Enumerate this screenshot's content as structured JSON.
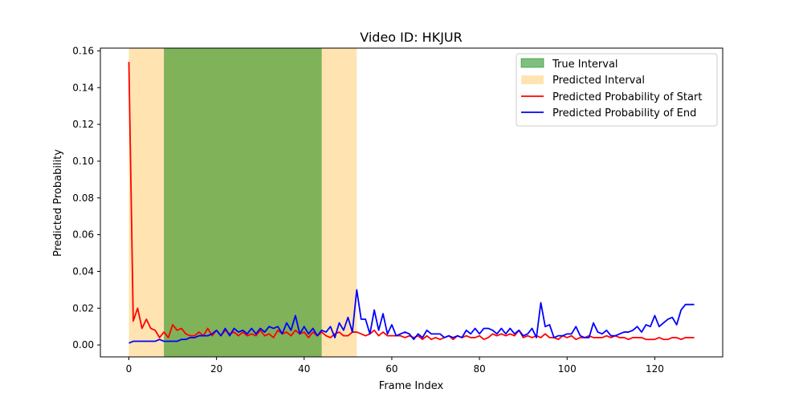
{
  "chart_data": {
    "type": "line",
    "title": "Video ID: HKJUR",
    "xlabel": "Frame Index",
    "ylabel": "Predicted Probability",
    "xlim": [
      -6.5,
      135.5
    ],
    "ylim": [
      -0.0065,
      0.1615
    ],
    "x_ticks": [
      0,
      20,
      40,
      60,
      80,
      100,
      120
    ],
    "y_ticks": [
      0.0,
      0.02,
      0.04,
      0.06,
      0.08,
      0.1,
      0.12,
      0.14,
      0.16
    ],
    "x_tick_labels": [
      "0",
      "20",
      "40",
      "60",
      "80",
      "100",
      "120"
    ],
    "y_tick_labels": [
      "0.00",
      "0.02",
      "0.04",
      "0.06",
      "0.08",
      "0.10",
      "0.12",
      "0.14",
      "0.16"
    ],
    "grid": false,
    "legend_position": "top-right",
    "intervals": [
      {
        "name": "Predicted Interval",
        "start": 0,
        "end": 52,
        "color": "#ffa500",
        "opacity": 0.3
      },
      {
        "name": "True Interval",
        "start": 8,
        "end": 44,
        "color": "#008000",
        "opacity": 0.5
      }
    ],
    "series": [
      {
        "name": "Predicted Probability of Start",
        "color": "#ff0000",
        "values": [
          0.154,
          0.013,
          0.02,
          0.009,
          0.014,
          0.009,
          0.008,
          0.004,
          0.007,
          0.004,
          0.011,
          0.008,
          0.009,
          0.006,
          0.005,
          0.005,
          0.007,
          0.005,
          0.009,
          0.005,
          0.008,
          0.005,
          0.008,
          0.006,
          0.007,
          0.005,
          0.007,
          0.005,
          0.006,
          0.005,
          0.008,
          0.005,
          0.006,
          0.004,
          0.008,
          0.006,
          0.007,
          0.005,
          0.008,
          0.006,
          0.007,
          0.004,
          0.007,
          0.005,
          0.007,
          0.005,
          0.004,
          0.006,
          0.007,
          0.005,
          0.005,
          0.007,
          0.007,
          0.006,
          0.005,
          0.006,
          0.008,
          0.005,
          0.007,
          0.005,
          0.005,
          0.005,
          0.005,
          0.004,
          0.005,
          0.004,
          0.005,
          0.003,
          0.005,
          0.003,
          0.004,
          0.003,
          0.004,
          0.005,
          0.003,
          0.005,
          0.004,
          0.005,
          0.004,
          0.004,
          0.005,
          0.003,
          0.004,
          0.006,
          0.005,
          0.006,
          0.005,
          0.006,
          0.005,
          0.008,
          0.004,
          0.005,
          0.004,
          0.005,
          0.004,
          0.006,
          0.004,
          0.004,
          0.003,
          0.005,
          0.004,
          0.005,
          0.003,
          0.004,
          0.004,
          0.005,
          0.004,
          0.004,
          0.004,
          0.005,
          0.004,
          0.005,
          0.004,
          0.004,
          0.003,
          0.004,
          0.004,
          0.004,
          0.003,
          0.003,
          0.003,
          0.004,
          0.003,
          0.003,
          0.004,
          0.004,
          0.003,
          0.004,
          0.004,
          0.004
        ]
      },
      {
        "name": "Predicted Probability of End",
        "color": "#0000ff",
        "values": [
          0.001,
          0.002,
          0.002,
          0.002,
          0.002,
          0.002,
          0.002,
          0.003,
          0.002,
          0.002,
          0.002,
          0.002,
          0.003,
          0.003,
          0.004,
          0.004,
          0.005,
          0.005,
          0.005,
          0.006,
          0.008,
          0.005,
          0.009,
          0.005,
          0.009,
          0.007,
          0.008,
          0.006,
          0.009,
          0.006,
          0.009,
          0.007,
          0.01,
          0.009,
          0.01,
          0.006,
          0.012,
          0.008,
          0.016,
          0.006,
          0.01,
          0.006,
          0.009,
          0.005,
          0.008,
          0.007,
          0.01,
          0.004,
          0.012,
          0.008,
          0.015,
          0.007,
          0.03,
          0.014,
          0.014,
          0.006,
          0.019,
          0.008,
          0.017,
          0.006,
          0.011,
          0.005,
          0.006,
          0.007,
          0.006,
          0.003,
          0.006,
          0.004,
          0.008,
          0.006,
          0.006,
          0.006,
          0.004,
          0.005,
          0.004,
          0.005,
          0.004,
          0.008,
          0.006,
          0.009,
          0.006,
          0.009,
          0.009,
          0.008,
          0.006,
          0.009,
          0.006,
          0.009,
          0.006,
          0.008,
          0.005,
          0.006,
          0.009,
          0.004,
          0.023,
          0.01,
          0.011,
          0.004,
          0.005,
          0.005,
          0.006,
          0.006,
          0.01,
          0.005,
          0.004,
          0.004,
          0.012,
          0.007,
          0.006,
          0.008,
          0.005,
          0.005,
          0.006,
          0.007,
          0.007,
          0.008,
          0.01,
          0.007,
          0.011,
          0.01,
          0.016,
          0.01,
          0.012,
          0.014,
          0.015,
          0.011,
          0.019,
          0.022,
          0.022,
          0.022
        ]
      }
    ],
    "legend": [
      "True Interval",
      "Predicted Interval",
      "Predicted Probability of Start",
      "Predicted Probability of End"
    ]
  }
}
